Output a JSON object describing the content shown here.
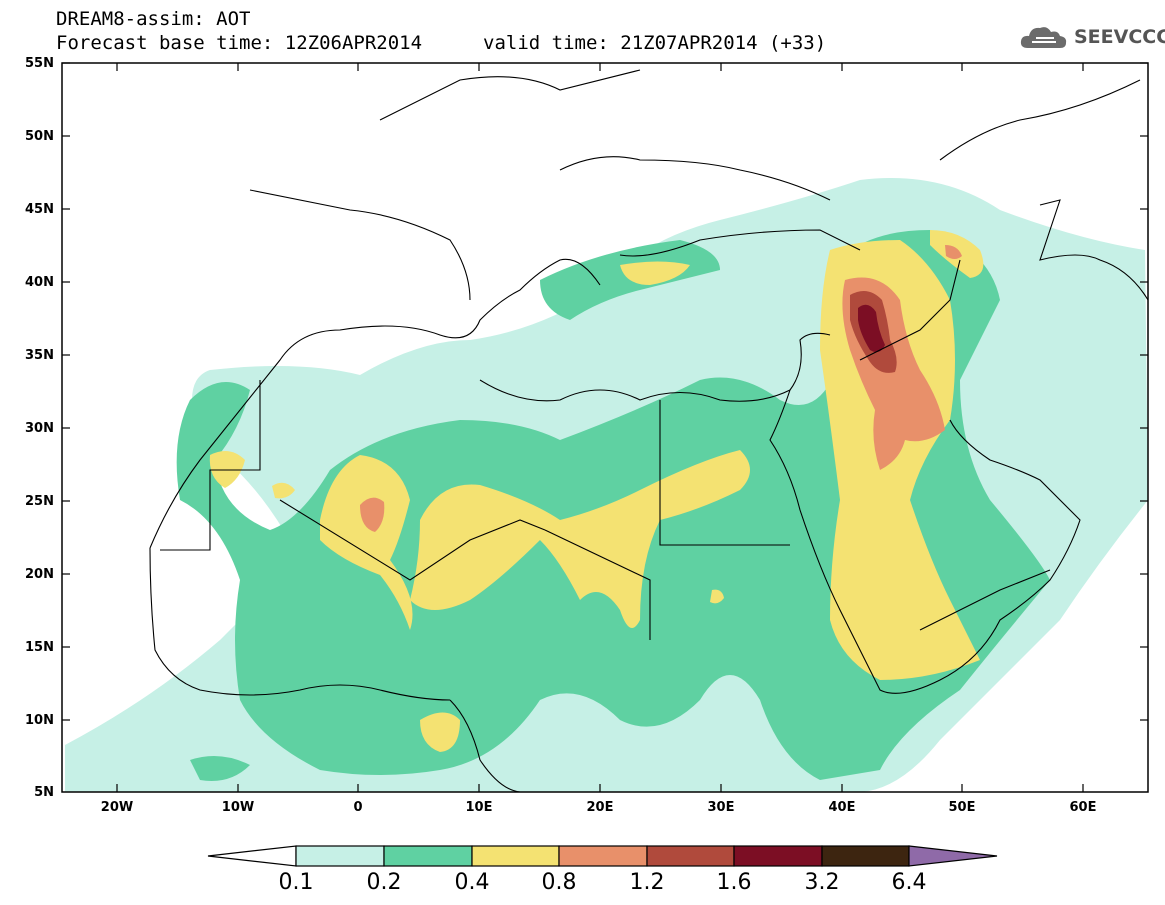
{
  "header": {
    "title": "DREAM8-assim: AOT",
    "base_time": "Forecast base time: 12Z06APR2014",
    "valid_time": "valid time: 21Z07APR2014 (+33)"
  },
  "logo": {
    "text": "SEEVCCC",
    "icon": "cloud-icon"
  },
  "map": {
    "lat_labels": [
      "55N",
      "50N",
      "45N",
      "40N",
      "35N",
      "30N",
      "25N",
      "20N",
      "15N",
      "10N",
      "5N"
    ],
    "lon_labels": [
      "20W",
      "10W",
      "0",
      "10E",
      "20E",
      "30E",
      "40E",
      "50E",
      "60E"
    ]
  },
  "colorbar": {
    "labels": [
      "0.1",
      "0.2",
      "0.4",
      "0.8",
      "1.2",
      "1.6",
      "3.2",
      "6.4"
    ],
    "colors": [
      "#ffffff",
      "#c6f0e6",
      "#5fd1a2",
      "#f4e272",
      "#e8906a",
      "#b04a3c",
      "#7c0e24",
      "#3d2510",
      "#8f6aa8"
    ]
  },
  "colors": {
    "level1": "#c6f0e6",
    "level2": "#5fd1a2",
    "level3": "#f4e272",
    "level4": "#e8906a",
    "level5": "#b04a3c",
    "level6": "#7c0e24"
  }
}
